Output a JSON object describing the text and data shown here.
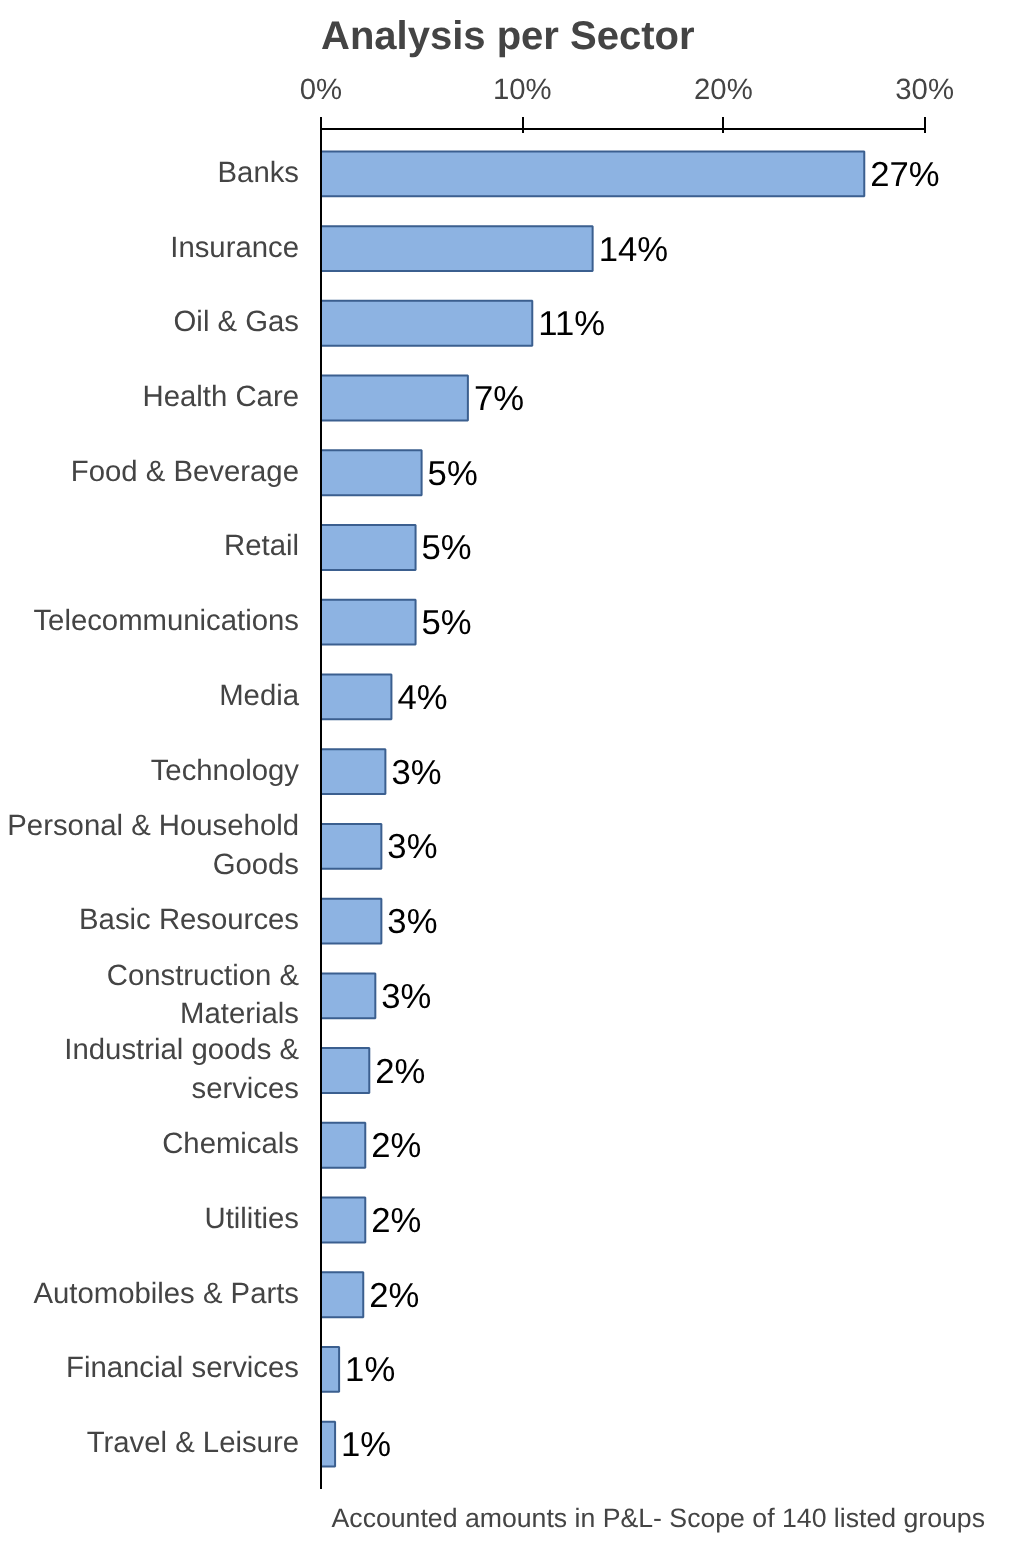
{
  "chart_data": {
    "type": "bar",
    "orientation": "horizontal",
    "title": "Analysis per Sector",
    "categories": [
      "Banks",
      "Insurance",
      "Oil & Gas",
      "Health Care",
      "Food & Beverage",
      "Retail",
      "Telecommunications",
      "Media",
      "Technology",
      "Personal & Household Goods",
      "Basic Resources",
      "Construction & Materials",
      "Industrial goods & services",
      "Chemicals",
      "Utilities",
      "Automobiles & Parts",
      "Financial services",
      "Travel & Leisure"
    ],
    "values": [
      27,
      13.5,
      10.5,
      7.3,
      5,
      4.7,
      4.7,
      3.5,
      3.2,
      3,
      3,
      2.7,
      2.4,
      2.2,
      2.2,
      2.1,
      0.9,
      0.7
    ],
    "value_labels": [
      "27%",
      "14%",
      "11%",
      "7%",
      "5%",
      "5%",
      "5%",
      "4%",
      "3%",
      "3%",
      "3%",
      "3%",
      "2%",
      "2%",
      "2%",
      "2%",
      "1%",
      "1%"
    ],
    "color": "#8db3e2",
    "xlim": [
      0,
      30
    ],
    "xticks": [
      {
        "value": 0,
        "label": "0%"
      },
      {
        "value": 10,
        "label": "10%"
      },
      {
        "value": 20,
        "label": "20%"
      },
      {
        "value": 30,
        "label": "30%"
      }
    ],
    "grid": false,
    "annotations": [
      "Accounted amounts in P&L- Scope of 140 listed groups"
    ]
  }
}
